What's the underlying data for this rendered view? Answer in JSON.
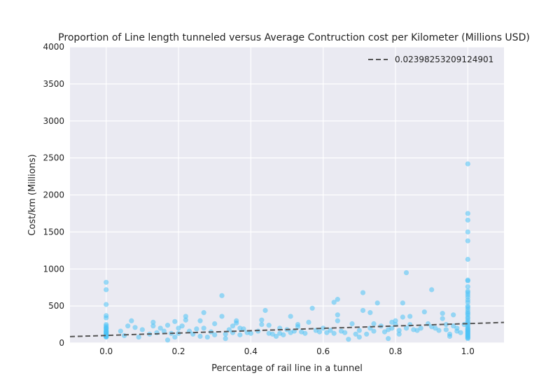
{
  "chart_data": {
    "type": "scatter",
    "title": "Proportion of Line length tunneled versus Average Contruction cost per Kilometer (Millions USD)",
    "xlabel": "Percentage of rail line in a tunnel",
    "ylabel": "Cost/km (Millions)",
    "xlim": [
      -0.1,
      1.1
    ],
    "ylim": [
      0,
      4000
    ],
    "xticks": [
      0.0,
      0.2,
      0.4,
      0.6,
      0.8,
      1.0
    ],
    "xtick_labels": [
      "0.0",
      "0.2",
      "0.4",
      "0.6",
      "0.8",
      "1.0"
    ],
    "yticks": [
      0,
      500,
      1000,
      1500,
      2000,
      2500,
      3000,
      3500,
      4000
    ],
    "ytick_labels": [
      "0",
      "500",
      "1000",
      "1500",
      "2000",
      "2500",
      "3000",
      "3500",
      "4000"
    ],
    "grid": true,
    "legend_position": "top-right",
    "colors": {
      "background": "#eaeaf2",
      "grid": "#ffffff",
      "point": "#4cc3f5",
      "trend": "#555555"
    },
    "trendline": {
      "label": "0.02398253209124901",
      "x": [
        -0.1,
        1.1
      ],
      "y": [
        86,
        278
      ],
      "style": "dashed"
    },
    "points": [
      [
        0.0,
        820
      ],
      [
        0.0,
        720
      ],
      [
        0.0,
        520
      ],
      [
        0.0,
        370
      ],
      [
        0.0,
        340
      ],
      [
        0.0,
        250
      ],
      [
        0.0,
        230
      ],
      [
        0.0,
        210
      ],
      [
        0.0,
        190
      ],
      [
        0.0,
        170
      ],
      [
        0.0,
        150
      ],
      [
        0.0,
        130
      ],
      [
        0.0,
        120
      ],
      [
        0.0,
        110
      ],
      [
        0.0,
        100
      ],
      [
        0.0,
        90
      ],
      [
        0.0,
        85
      ],
      [
        0.0,
        80
      ],
      [
        0.0,
        140
      ],
      [
        0.0,
        160
      ],
      [
        0.0,
        200
      ],
      [
        0.04,
        160
      ],
      [
        0.05,
        100
      ],
      [
        0.06,
        230
      ],
      [
        0.07,
        300
      ],
      [
        0.08,
        210
      ],
      [
        0.09,
        80
      ],
      [
        0.1,
        180
      ],
      [
        0.12,
        120
      ],
      [
        0.13,
        280
      ],
      [
        0.13,
        230
      ],
      [
        0.14,
        140
      ],
      [
        0.15,
        200
      ],
      [
        0.16,
        160
      ],
      [
        0.17,
        40
      ],
      [
        0.17,
        240
      ],
      [
        0.18,
        130
      ],
      [
        0.19,
        80
      ],
      [
        0.19,
        290
      ],
      [
        0.2,
        200
      ],
      [
        0.2,
        130
      ],
      [
        0.21,
        230
      ],
      [
        0.22,
        310
      ],
      [
        0.22,
        360
      ],
      [
        0.23,
        160
      ],
      [
        0.24,
        120
      ],
      [
        0.25,
        190
      ],
      [
        0.26,
        90
      ],
      [
        0.26,
        300
      ],
      [
        0.27,
        410
      ],
      [
        0.27,
        200
      ],
      [
        0.28,
        80
      ],
      [
        0.29,
        150
      ],
      [
        0.3,
        260
      ],
      [
        0.3,
        110
      ],
      [
        0.32,
        640
      ],
      [
        0.32,
        360
      ],
      [
        0.33,
        60
      ],
      [
        0.33,
        120
      ],
      [
        0.34,
        180
      ],
      [
        0.35,
        230
      ],
      [
        0.35,
        140
      ],
      [
        0.36,
        300
      ],
      [
        0.36,
        270
      ],
      [
        0.37,
        200
      ],
      [
        0.37,
        110
      ],
      [
        0.38,
        190
      ],
      [
        0.39,
        140
      ],
      [
        0.4,
        130
      ],
      [
        0.42,
        160
      ],
      [
        0.43,
        310
      ],
      [
        0.43,
        250
      ],
      [
        0.44,
        440
      ],
      [
        0.45,
        130
      ],
      [
        0.45,
        240
      ],
      [
        0.46,
        120
      ],
      [
        0.47,
        90
      ],
      [
        0.48,
        200
      ],
      [
        0.48,
        130
      ],
      [
        0.49,
        110
      ],
      [
        0.5,
        180
      ],
      [
        0.51,
        360
      ],
      [
        0.51,
        140
      ],
      [
        0.52,
        160
      ],
      [
        0.53,
        250
      ],
      [
        0.53,
        220
      ],
      [
        0.54,
        150
      ],
      [
        0.55,
        130
      ],
      [
        0.56,
        280
      ],
      [
        0.57,
        470
      ],
      [
        0.58,
        170
      ],
      [
        0.59,
        150
      ],
      [
        0.6,
        200
      ],
      [
        0.61,
        140
      ],
      [
        0.62,
        170
      ],
      [
        0.63,
        550
      ],
      [
        0.63,
        130
      ],
      [
        0.64,
        590
      ],
      [
        0.64,
        380
      ],
      [
        0.64,
        300
      ],
      [
        0.65,
        160
      ],
      [
        0.66,
        140
      ],
      [
        0.67,
        50
      ],
      [
        0.68,
        260
      ],
      [
        0.69,
        120
      ],
      [
        0.7,
        80
      ],
      [
        0.7,
        170
      ],
      [
        0.71,
        680
      ],
      [
        0.71,
        440
      ],
      [
        0.72,
        120
      ],
      [
        0.73,
        200
      ],
      [
        0.73,
        410
      ],
      [
        0.74,
        260
      ],
      [
        0.74,
        160
      ],
      [
        0.75,
        540
      ],
      [
        0.76,
        230
      ],
      [
        0.77,
        150
      ],
      [
        0.78,
        60
      ],
      [
        0.78,
        180
      ],
      [
        0.79,
        200
      ],
      [
        0.79,
        280
      ],
      [
        0.8,
        250
      ],
      [
        0.8,
        300
      ],
      [
        0.81,
        170
      ],
      [
        0.81,
        120
      ],
      [
        0.82,
        540
      ],
      [
        0.82,
        350
      ],
      [
        0.83,
        950
      ],
      [
        0.83,
        200
      ],
      [
        0.84,
        360
      ],
      [
        0.84,
        250
      ],
      [
        0.85,
        180
      ],
      [
        0.86,
        170
      ],
      [
        0.87,
        200
      ],
      [
        0.88,
        420
      ],
      [
        0.89,
        260
      ],
      [
        0.9,
        720
      ],
      [
        0.9,
        220
      ],
      [
        0.91,
        200
      ],
      [
        0.92,
        170
      ],
      [
        0.93,
        330
      ],
      [
        0.93,
        400
      ],
      [
        0.94,
        250
      ],
      [
        0.94,
        180
      ],
      [
        0.95,
        120
      ],
      [
        0.95,
        90
      ],
      [
        0.96,
        230
      ],
      [
        0.96,
        380
      ],
      [
        0.97,
        200
      ],
      [
        0.97,
        160
      ],
      [
        0.98,
        140
      ],
      [
        0.99,
        250
      ],
      [
        1.0,
        2420
      ],
      [
        1.0,
        1750
      ],
      [
        1.0,
        1660
      ],
      [
        1.0,
        1500
      ],
      [
        1.0,
        1380
      ],
      [
        1.0,
        1130
      ],
      [
        1.0,
        850
      ],
      [
        1.0,
        840
      ],
      [
        1.0,
        760
      ],
      [
        1.0,
        700
      ],
      [
        1.0,
        680
      ],
      [
        1.0,
        650
      ],
      [
        1.0,
        620
      ],
      [
        1.0,
        580
      ],
      [
        1.0,
        550
      ],
      [
        1.0,
        500
      ],
      [
        1.0,
        480
      ],
      [
        1.0,
        450
      ],
      [
        1.0,
        420
      ],
      [
        1.0,
        400
      ],
      [
        1.0,
        380
      ],
      [
        1.0,
        350
      ],
      [
        1.0,
        330
      ],
      [
        1.0,
        300
      ],
      [
        1.0,
        280
      ],
      [
        1.0,
        260
      ],
      [
        1.0,
        240
      ],
      [
        1.0,
        220
      ],
      [
        1.0,
        200
      ],
      [
        1.0,
        190
      ],
      [
        1.0,
        180
      ],
      [
        1.0,
        170
      ],
      [
        1.0,
        160
      ],
      [
        1.0,
        150
      ],
      [
        1.0,
        140
      ],
      [
        1.0,
        130
      ],
      [
        1.0,
        120
      ],
      [
        1.0,
        110
      ],
      [
        1.0,
        100
      ],
      [
        1.0,
        90
      ],
      [
        1.0,
        80
      ],
      [
        1.0,
        70
      ],
      [
        1.0,
        60
      ]
    ]
  }
}
